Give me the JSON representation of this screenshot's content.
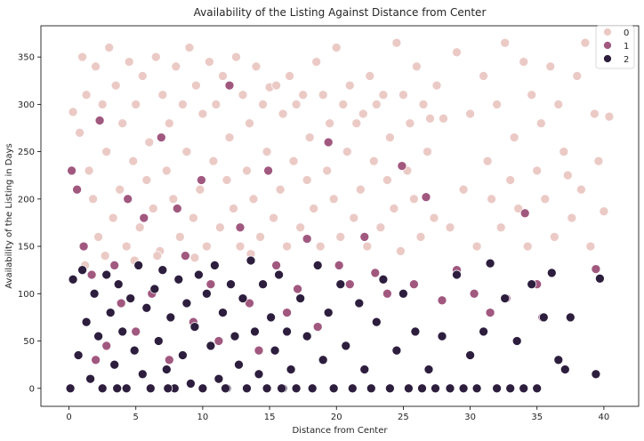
{
  "chart_data": {
    "type": "scatter",
    "title": "Availability of the Listing Against Distance from Center",
    "xlabel": "Distance from Center",
    "ylabel": "Availability of the Listing in Days",
    "xlim": [
      -2.1,
      42.6
    ],
    "ylim": [
      -19,
      383
    ],
    "xticks": [
      0,
      5,
      10,
      15,
      20,
      25,
      30,
      35,
      40
    ],
    "yticks": [
      0,
      50,
      100,
      150,
      200,
      250,
      300,
      350
    ],
    "grid": false,
    "legend": {
      "placement": "top-right",
      "entries": [
        "0",
        "1",
        "2"
      ]
    },
    "colors": {
      "0": "#ebcac6",
      "1": "#a1587f",
      "2": "#2d1e3e"
    },
    "series": [
      {
        "name": "0",
        "points": [
          [
            0.3,
            292
          ],
          [
            0.8,
            270
          ],
          [
            1.0,
            350
          ],
          [
            1.3,
            310
          ],
          [
            1.5,
            230
          ],
          [
            1.8,
            200
          ],
          [
            2.0,
            340
          ],
          [
            2.2,
            160
          ],
          [
            2.5,
            300
          ],
          [
            2.8,
            250
          ],
          [
            3.0,
            360
          ],
          [
            3.3,
            180
          ],
          [
            3.5,
            320
          ],
          [
            3.8,
            210
          ],
          [
            4.0,
            280
          ],
          [
            4.3,
            150
          ],
          [
            4.5,
            345
          ],
          [
            4.8,
            240
          ],
          [
            5.0,
            300
          ],
          [
            5.3,
            170
          ],
          [
            5.5,
            330
          ],
          [
            5.8,
            220
          ],
          [
            6.0,
            260
          ],
          [
            6.3,
            190
          ],
          [
            6.5,
            350
          ],
          [
            6.8,
            145
          ],
          [
            7.0,
            310
          ],
          [
            7.3,
            230
          ],
          [
            7.5,
            280
          ],
          [
            7.8,
            200
          ],
          [
            8.0,
            340
          ],
          [
            8.3,
            160
          ],
          [
            8.5,
            300
          ],
          [
            8.8,
            250
          ],
          [
            9.0,
            360
          ],
          [
            9.3,
            180
          ],
          [
            9.5,
            320
          ],
          [
            9.8,
            210
          ],
          [
            10.0,
            290
          ],
          [
            10.3,
            150
          ],
          [
            10.5,
            345
          ],
          [
            10.8,
            240
          ],
          [
            11.0,
            300
          ],
          [
            11.3,
            170
          ],
          [
            11.5,
            330
          ],
          [
            11.8,
            220
          ],
          [
            12.0,
            265
          ],
          [
            12.3,
            190
          ],
          [
            12.5,
            350
          ],
          [
            12.8,
            150
          ],
          [
            13.0,
            310
          ],
          [
            13.3,
            230
          ],
          [
            13.5,
            280
          ],
          [
            13.8,
            200
          ],
          [
            14.0,
            340
          ],
          [
            14.3,
            160
          ],
          [
            14.5,
            300
          ],
          [
            14.8,
            250
          ],
          [
            15.0,
            318
          ],
          [
            15.3,
            180
          ],
          [
            15.5,
            320
          ],
          [
            15.8,
            210
          ],
          [
            16.0,
            290
          ],
          [
            16.3,
            150
          ],
          [
            16.5,
            330
          ],
          [
            16.8,
            240
          ],
          [
            17.0,
            300
          ],
          [
            17.3,
            170
          ],
          [
            17.5,
            310
          ],
          [
            17.8,
            220
          ],
          [
            18.0,
            265
          ],
          [
            18.3,
            190
          ],
          [
            18.5,
            345
          ],
          [
            18.8,
            150
          ],
          [
            19.0,
            310
          ],
          [
            19.3,
            230
          ],
          [
            19.5,
            280
          ],
          [
            19.8,
            200
          ],
          [
            20.0,
            360
          ],
          [
            20.3,
            160
          ],
          [
            20.5,
            300
          ],
          [
            20.8,
            250
          ],
          [
            21.0,
            320
          ],
          [
            21.3,
            180
          ],
          [
            21.5,
            280
          ],
          [
            21.8,
            210
          ],
          [
            22.0,
            290
          ],
          [
            22.3,
            150
          ],
          [
            22.5,
            330
          ],
          [
            22.8,
            240
          ],
          [
            23.0,
            300
          ],
          [
            23.3,
            170
          ],
          [
            23.5,
            310
          ],
          [
            23.8,
            220
          ],
          [
            24.0,
            265
          ],
          [
            24.3,
            190
          ],
          [
            24.5,
            365
          ],
          [
            24.8,
            145
          ],
          [
            25.0,
            310
          ],
          [
            25.3,
            230
          ],
          [
            25.5,
            280
          ],
          [
            25.8,
            200
          ],
          [
            26.0,
            340
          ],
          [
            26.3,
            160
          ],
          [
            26.5,
            300
          ],
          [
            26.8,
            250
          ],
          [
            27.0,
            285
          ],
          [
            27.3,
            180
          ],
          [
            27.5,
            320
          ],
          [
            28.0,
            285
          ],
          [
            28.5,
            170
          ],
          [
            29.0,
            355
          ],
          [
            29.5,
            210
          ],
          [
            30.0,
            290
          ],
          [
            30.5,
            150
          ],
          [
            31.0,
            330
          ],
          [
            31.3,
            240
          ],
          [
            31.6,
            200
          ],
          [
            32.0,
            300
          ],
          [
            32.3,
            170
          ],
          [
            32.6,
            365
          ],
          [
            33.0,
            220
          ],
          [
            33.3,
            265
          ],
          [
            33.6,
            190
          ],
          [
            34.0,
            345
          ],
          [
            34.3,
            150
          ],
          [
            34.6,
            310
          ],
          [
            35.0,
            230
          ],
          [
            35.3,
            280
          ],
          [
            35.6,
            200
          ],
          [
            36.0,
            340
          ],
          [
            36.3,
            160
          ],
          [
            36.6,
            300
          ],
          [
            37.0,
            250
          ],
          [
            37.3,
            225
          ],
          [
            37.6,
            180
          ],
          [
            38.0,
            330
          ],
          [
            38.3,
            210
          ],
          [
            38.6,
            365
          ],
          [
            39.0,
            150
          ],
          [
            39.3,
            290
          ],
          [
            39.6,
            240
          ],
          [
            40.0,
            187
          ],
          [
            40.4,
            287
          ],
          [
            1.2,
            130
          ],
          [
            2.7,
            140
          ],
          [
            4.9,
            135
          ],
          [
            6.6,
            140
          ],
          [
            9.4,
            138
          ],
          [
            13.6,
            142
          ]
        ]
      },
      {
        "name": "1",
        "points": [
          [
            0.2,
            230
          ],
          [
            0.6,
            210
          ],
          [
            1.1,
            150
          ],
          [
            1.7,
            120
          ],
          [
            2.3,
            283
          ],
          [
            2.8,
            45
          ],
          [
            3.4,
            130
          ],
          [
            3.9,
            90
          ],
          [
            4.4,
            200
          ],
          [
            5.0,
            60
          ],
          [
            5.6,
            180
          ],
          [
            6.2,
            100
          ],
          [
            6.9,
            265
          ],
          [
            7.5,
            30
          ],
          [
            8.1,
            190
          ],
          [
            8.7,
            140
          ],
          [
            9.3,
            70
          ],
          [
            9.9,
            220
          ],
          [
            10.6,
            110
          ],
          [
            11.2,
            50
          ],
          [
            12.0,
            320
          ],
          [
            12.8,
            170
          ],
          [
            13.5,
            90
          ],
          [
            14.2,
            40
          ],
          [
            14.9,
            230
          ],
          [
            15.5,
            130
          ],
          [
            16.3,
            80
          ],
          [
            17.1,
            105
          ],
          [
            17.8,
            158
          ],
          [
            18.6,
            65
          ],
          [
            19.4,
            260
          ],
          [
            20.2,
            130
          ],
          [
            21.0,
            110
          ],
          [
            22.1,
            160
          ],
          [
            22.9,
            122
          ],
          [
            23.8,
            100
          ],
          [
            24.9,
            235
          ],
          [
            25.8,
            110
          ],
          [
            26.7,
            202
          ],
          [
            27.9,
            93
          ],
          [
            29.0,
            125
          ],
          [
            30.3,
            100
          ],
          [
            31.5,
            80
          ],
          [
            32.7,
            95
          ],
          [
            34.1,
            185
          ],
          [
            35.0,
            110
          ],
          [
            35.4,
            75
          ],
          [
            36.6,
            30
          ],
          [
            39.4,
            126
          ],
          [
            2.0,
            30
          ]
        ]
      },
      {
        "name": "2",
        "points": [
          [
            0.1,
            0
          ],
          [
            0.3,
            115
          ],
          [
            0.7,
            35
          ],
          [
            1.0,
            125
          ],
          [
            1.3,
            70
          ],
          [
            1.6,
            10
          ],
          [
            1.9,
            100
          ],
          [
            2.2,
            55
          ],
          [
            2.5,
            0
          ],
          [
            2.8,
            120
          ],
          [
            3.1,
            80
          ],
          [
            3.4,
            25
          ],
          [
            3.7,
            110
          ],
          [
            4.0,
            60
          ],
          [
            4.3,
            0
          ],
          [
            4.6,
            95
          ],
          [
            4.9,
            40
          ],
          [
            5.2,
            130
          ],
          [
            5.5,
            15
          ],
          [
            5.8,
            85
          ],
          [
            6.1,
            0
          ],
          [
            6.4,
            105
          ],
          [
            6.7,
            50
          ],
          [
            7.0,
            125
          ],
          [
            7.3,
            20
          ],
          [
            7.6,
            75
          ],
          [
            7.9,
            0
          ],
          [
            8.2,
            115
          ],
          [
            8.5,
            35
          ],
          [
            8.8,
            90
          ],
          [
            9.1,
            5
          ],
          [
            9.4,
            65
          ],
          [
            9.7,
            120
          ],
          [
            10.0,
            0
          ],
          [
            10.3,
            100
          ],
          [
            10.6,
            45
          ],
          [
            10.9,
            130
          ],
          [
            11.2,
            10
          ],
          [
            11.5,
            80
          ],
          [
            11.8,
            0
          ],
          [
            12.1,
            110
          ],
          [
            12.4,
            55
          ],
          [
            12.7,
            25
          ],
          [
            13.0,
            95
          ],
          [
            13.3,
            0
          ],
          [
            13.6,
            135
          ],
          [
            13.9,
            60
          ],
          [
            14.2,
            15
          ],
          [
            14.5,
            110
          ],
          [
            14.8,
            0
          ],
          [
            15.1,
            75
          ],
          [
            15.4,
            40
          ],
          [
            15.7,
            120
          ],
          [
            16.0,
            0
          ],
          [
            16.3,
            60
          ],
          [
            16.6,
            20
          ],
          [
            17.0,
            0
          ],
          [
            17.3,
            95
          ],
          [
            17.8,
            55
          ],
          [
            18.2,
            0
          ],
          [
            18.6,
            130
          ],
          [
            19.0,
            30
          ],
          [
            19.4,
            80
          ],
          [
            19.8,
            0
          ],
          [
            20.3,
            110
          ],
          [
            20.7,
            45
          ],
          [
            21.2,
            0
          ],
          [
            21.7,
            90
          ],
          [
            22.1,
            20
          ],
          [
            22.6,
            0
          ],
          [
            23.0,
            70
          ],
          [
            23.5,
            115
          ],
          [
            24.0,
            0
          ],
          [
            24.5,
            40
          ],
          [
            25.0,
            100
          ],
          [
            25.4,
            0
          ],
          [
            25.9,
            60
          ],
          [
            26.4,
            0
          ],
          [
            26.9,
            20
          ],
          [
            27.4,
            0
          ],
          [
            27.9,
            55
          ],
          [
            28.5,
            0
          ],
          [
            29.0,
            120
          ],
          [
            29.5,
            0
          ],
          [
            30.0,
            35
          ],
          [
            30.5,
            0
          ],
          [
            31.0,
            60
          ],
          [
            31.5,
            132
          ],
          [
            32.0,
            0
          ],
          [
            32.6,
            95
          ],
          [
            33.0,
            0
          ],
          [
            33.5,
            50
          ],
          [
            34.0,
            0
          ],
          [
            34.6,
            110
          ],
          [
            35.0,
            0
          ],
          [
            35.5,
            75
          ],
          [
            36.1,
            122
          ],
          [
            36.6,
            30
          ],
          [
            37.1,
            20
          ],
          [
            37.5,
            75
          ],
          [
            39.4,
            15
          ],
          [
            39.7,
            116
          ],
          [
            3.6,
            0
          ],
          [
            7.4,
            0
          ],
          [
            11.7,
            0
          ],
          [
            15.9,
            0
          ]
        ]
      }
    ]
  }
}
